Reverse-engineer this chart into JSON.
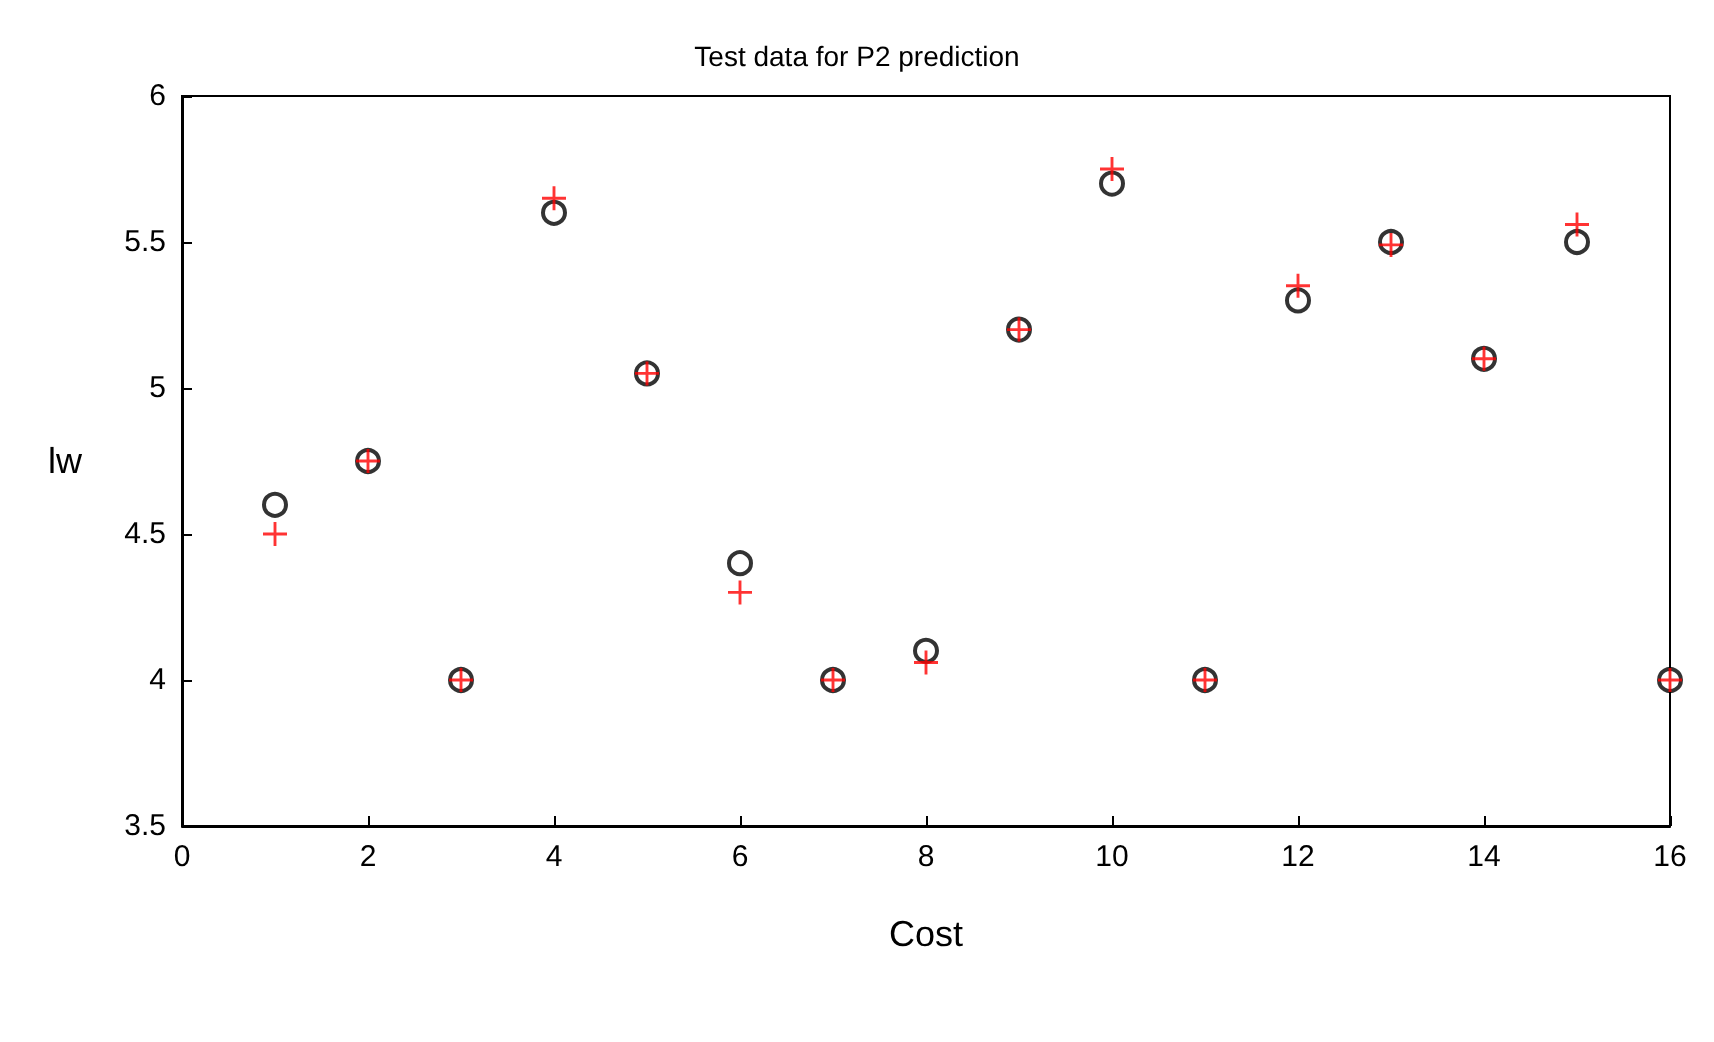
{
  "chart_data": {
    "type": "scatter",
    "title": "Test data for P2 prediction",
    "xlabel": "Cost",
    "ylabel": "lw",
    "x": [
      1,
      2,
      3,
      4,
      5,
      6,
      7,
      8,
      9,
      10,
      11,
      12,
      13,
      14,
      15,
      16
    ],
    "series": [
      {
        "color": "#000000",
        "marker": "circle",
        "values": [
          4.6,
          4.75,
          4,
          5.6,
          5.05,
          4.4,
          4,
          4.1,
          5.2,
          5.7,
          4,
          5.3,
          5.5,
          5.1,
          5.5,
          4
        ]
      },
      {
        "color": "#ff0000",
        "marker": "cross",
        "values": [
          4.5,
          4.75,
          4,
          5.65,
          5.05,
          4.3,
          4,
          4.06,
          5.2,
          5.75,
          4,
          5.35,
          5.49,
          5.1,
          5.56,
          4
        ]
      }
    ],
    "xlim": [
      0,
      16
    ],
    "xticks": [
      0,
      2,
      4,
      6,
      8,
      10,
      12,
      14,
      16
    ],
    "ylim": [
      3.5,
      6
    ],
    "yticks": [
      3.5,
      4,
      4.5,
      5,
      5.5,
      6
    ],
    "grid": false
  }
}
